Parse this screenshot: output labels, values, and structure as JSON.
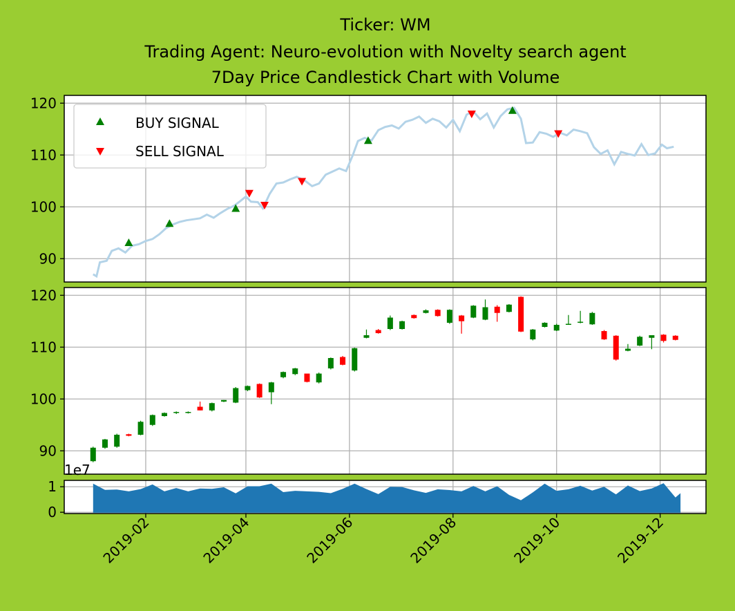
{
  "title": {
    "line1": "Ticker: WM",
    "line2": "Trading Agent: Neuro-evolution with Novelty search agent",
    "line3": "7Day Price Candlestick Chart with Volume"
  },
  "colors": {
    "background": "#9acd32",
    "price_line": "#b3d3e8",
    "buy": "#008000",
    "sell": "#ff0000",
    "candle_up": "#008000",
    "candle_down": "#ff0000",
    "volume": "#1f77b4",
    "grid": "#b0b0b0"
  },
  "chart_data": [
    {
      "type": "line",
      "panel": "price-signals",
      "x_type": "date",
      "y_ticks": [
        90,
        100,
        110,
        120
      ],
      "ylim": [
        85.5,
        121.5
      ],
      "grid": true,
      "legend_position": "upper-left",
      "series": [
        {
          "role": "price",
          "points": [
            [
              "2019-01-01",
              87.0
            ],
            [
              "2019-01-03",
              86.6
            ],
            [
              "2019-01-05",
              89.3
            ],
            [
              "2019-01-09",
              89.6
            ],
            [
              "2019-01-12",
              91.5
            ],
            [
              "2019-01-16",
              92.0
            ],
            [
              "2019-01-20",
              91.2
            ],
            [
              "2019-01-24",
              92.5
            ],
            [
              "2019-01-28",
              92.8
            ],
            [
              "2019-02-01",
              93.4
            ],
            [
              "2019-02-05",
              93.8
            ],
            [
              "2019-02-09",
              94.7
            ],
            [
              "2019-02-13",
              95.9
            ],
            [
              "2019-02-17",
              96.6
            ],
            [
              "2019-02-21",
              97.1
            ],
            [
              "2019-02-25",
              97.4
            ],
            [
              "2019-03-01",
              97.6
            ],
            [
              "2019-03-05",
              97.8
            ],
            [
              "2019-03-09",
              98.5
            ],
            [
              "2019-03-13",
              97.9
            ],
            [
              "2019-03-17",
              98.8
            ],
            [
              "2019-03-21",
              99.6
            ],
            [
              "2019-03-25",
              100.2
            ],
            [
              "2019-03-29",
              101.2
            ],
            [
              "2019-04-01",
              102.0
            ],
            [
              "2019-04-04",
              101.0
            ],
            [
              "2019-04-08",
              100.9
            ],
            [
              "2019-04-11",
              99.7
            ],
            [
              "2019-04-15",
              102.5
            ],
            [
              "2019-04-19",
              104.5
            ],
            [
              "2019-04-23",
              104.7
            ],
            [
              "2019-04-27",
              105.3
            ],
            [
              "2019-05-01",
              105.8
            ],
            [
              "2019-05-06",
              105.0
            ],
            [
              "2019-05-10",
              104.0
            ],
            [
              "2019-05-14",
              104.5
            ],
            [
              "2019-05-18",
              106.2
            ],
            [
              "2019-05-22",
              106.8
            ],
            [
              "2019-05-26",
              107.4
            ],
            [
              "2019-05-30",
              106.9
            ],
            [
              "2019-06-03",
              110.0
            ],
            [
              "2019-06-06",
              112.7
            ],
            [
              "2019-06-10",
              113.3
            ],
            [
              "2019-06-14",
              112.8
            ],
            [
              "2019-06-18",
              114.8
            ],
            [
              "2019-06-22",
              115.4
            ],
            [
              "2019-06-26",
              115.7
            ],
            [
              "2019-06-30",
              115.1
            ],
            [
              "2019-07-04",
              116.4
            ],
            [
              "2019-07-08",
              116.8
            ],
            [
              "2019-07-12",
              117.4
            ],
            [
              "2019-07-16",
              116.2
            ],
            [
              "2019-07-20",
              117.0
            ],
            [
              "2019-07-24",
              116.5
            ],
            [
              "2019-07-28",
              115.3
            ],
            [
              "2019-08-01",
              116.8
            ],
            [
              "2019-08-05",
              114.6
            ],
            [
              "2019-08-09",
              117.8
            ],
            [
              "2019-08-13",
              118.4
            ],
            [
              "2019-08-17",
              116.9
            ],
            [
              "2019-08-21",
              118.0
            ],
            [
              "2019-08-25",
              115.3
            ],
            [
              "2019-08-29",
              117.5
            ],
            [
              "2019-09-02",
              118.8
            ],
            [
              "2019-09-06",
              119.1
            ],
            [
              "2019-09-10",
              117.0
            ],
            [
              "2019-09-13",
              112.3
            ],
            [
              "2019-09-17",
              112.4
            ],
            [
              "2019-09-21",
              114.4
            ],
            [
              "2019-09-25",
              114.1
            ],
            [
              "2019-09-29",
              113.5
            ],
            [
              "2019-10-03",
              114.3
            ],
            [
              "2019-10-07",
              113.8
            ],
            [
              "2019-10-11",
              114.9
            ],
            [
              "2019-10-15",
              114.6
            ],
            [
              "2019-10-19",
              114.2
            ],
            [
              "2019-10-23",
              111.5
            ],
            [
              "2019-10-27",
              110.2
            ],
            [
              "2019-10-31",
              110.9
            ],
            [
              "2019-11-04",
              108.2
            ],
            [
              "2019-11-08",
              110.6
            ],
            [
              "2019-11-12",
              110.2
            ],
            [
              "2019-11-16",
              109.9
            ],
            [
              "2019-11-20",
              112.1
            ],
            [
              "2019-11-24",
              110.0
            ],
            [
              "2019-11-28",
              110.3
            ],
            [
              "2019-12-02",
              112.0
            ],
            [
              "2019-12-05",
              111.3
            ],
            [
              "2019-12-09",
              111.6
            ]
          ]
        },
        {
          "name": "BUY SIGNAL",
          "marker": "triangle-up",
          "points": [
            [
              "2019-01-22",
              93.1
            ],
            [
              "2019-02-15",
              96.8
            ],
            [
              "2019-03-26",
              99.7
            ],
            [
              "2019-06-12",
              112.8
            ],
            [
              "2019-09-05",
              118.6
            ]
          ]
        },
        {
          "name": "SELL SIGNAL",
          "marker": "triangle-down",
          "points": [
            [
              "2019-04-03",
              102.6
            ],
            [
              "2019-04-12",
              100.3
            ],
            [
              "2019-05-04",
              104.9
            ],
            [
              "2019-08-12",
              117.9
            ],
            [
              "2019-10-02",
              114.1
            ]
          ]
        }
      ]
    },
    {
      "type": "candlestick",
      "panel": "candles",
      "period": "7Day",
      "x_type": "date",
      "y_ticks": [
        90,
        100,
        110,
        120
      ],
      "ylim": [
        85.5,
        121.5
      ],
      "grid": true,
      "candles": [
        [
          "2019-01-01",
          88.0,
          90.8,
          87.8,
          90.6
        ],
        [
          "2019-01-08",
          90.6,
          92.3,
          90.4,
          92.2
        ],
        [
          "2019-01-15",
          90.8,
          93.3,
          90.6,
          93.1
        ],
        [
          "2019-01-22",
          93.2,
          93.3,
          92.8,
          92.9
        ],
        [
          "2019-01-29",
          93.1,
          95.8,
          93.0,
          95.6
        ],
        [
          "2019-02-05",
          95.0,
          97.0,
          94.8,
          96.9
        ],
        [
          "2019-02-12",
          96.7,
          97.4,
          96.6,
          97.3
        ],
        [
          "2019-02-19",
          97.3,
          97.6,
          97.1,
          97.5
        ],
        [
          "2019-02-26",
          97.4,
          97.6,
          97.2,
          97.5
        ],
        [
          "2019-03-05",
          98.5,
          99.5,
          97.8,
          97.8
        ],
        [
          "2019-03-12",
          97.8,
          99.3,
          97.6,
          99.2
        ],
        [
          "2019-03-19",
          99.5,
          99.8,
          99.4,
          99.8
        ],
        [
          "2019-03-26",
          99.3,
          102.3,
          99.2,
          102.1
        ],
        [
          "2019-04-02",
          101.7,
          102.6,
          101.5,
          102.5
        ],
        [
          "2019-04-09",
          102.9,
          103.0,
          100.2,
          100.3
        ],
        [
          "2019-04-16",
          101.3,
          103.3,
          99.0,
          103.2
        ],
        [
          "2019-04-23",
          104.2,
          105.3,
          104.0,
          105.2
        ],
        [
          "2019-04-30",
          104.8,
          106.0,
          104.6,
          105.9
        ],
        [
          "2019-05-07",
          104.9,
          104.9,
          103.2,
          103.3
        ],
        [
          "2019-05-14",
          103.2,
          105.1,
          103.0,
          104.9
        ],
        [
          "2019-05-21",
          105.9,
          108.0,
          105.7,
          107.9
        ],
        [
          "2019-05-28",
          108.1,
          108.3,
          106.5,
          106.6
        ],
        [
          "2019-06-04",
          105.5,
          109.9,
          105.3,
          109.8
        ],
        [
          "2019-06-11",
          111.8,
          113.4,
          111.7,
          112.3
        ],
        [
          "2019-06-18",
          113.3,
          113.5,
          112.6,
          112.7
        ],
        [
          "2019-06-25",
          113.5,
          116.1,
          113.3,
          115.7
        ],
        [
          "2019-07-02",
          113.5,
          115.1,
          113.4,
          115.0
        ],
        [
          "2019-07-09",
          116.2,
          116.3,
          115.5,
          115.6
        ],
        [
          "2019-07-16",
          116.6,
          117.3,
          116.5,
          117.1
        ],
        [
          "2019-07-23",
          117.2,
          117.3,
          115.9,
          116.0
        ],
        [
          "2019-07-30",
          114.7,
          117.3,
          114.5,
          117.2
        ],
        [
          "2019-08-06",
          116.1,
          116.2,
          112.6,
          115.0
        ],
        [
          "2019-08-13",
          115.7,
          118.1,
          115.6,
          118.0
        ],
        [
          "2019-08-20",
          115.3,
          119.2,
          115.2,
          117.7
        ],
        [
          "2019-08-27",
          117.8,
          118.1,
          114.9,
          116.6
        ],
        [
          "2019-09-03",
          116.8,
          118.3,
          116.7,
          118.2
        ],
        [
          "2019-09-10",
          119.7,
          119.8,
          112.9,
          113.0
        ],
        [
          "2019-09-17",
          111.5,
          113.5,
          111.3,
          113.4
        ],
        [
          "2019-09-24",
          113.9,
          114.8,
          113.8,
          114.7
        ],
        [
          "2019-10-01",
          113.2,
          114.5,
          113.1,
          114.3
        ],
        [
          "2019-10-08",
          114.4,
          116.2,
          114.3,
          114.5
        ],
        [
          "2019-10-15",
          114.8,
          117.0,
          114.6,
          114.9
        ],
        [
          "2019-10-22",
          114.4,
          116.8,
          114.3,
          116.6
        ],
        [
          "2019-10-29",
          113.1,
          113.3,
          111.4,
          111.5
        ],
        [
          "2019-11-05",
          112.2,
          112.3,
          107.4,
          107.6
        ],
        [
          "2019-11-12",
          109.3,
          110.6,
          109.2,
          109.7
        ],
        [
          "2019-11-19",
          110.3,
          112.2,
          110.2,
          112.0
        ],
        [
          "2019-11-26",
          111.8,
          112.3,
          109.6,
          112.3
        ],
        [
          "2019-12-03",
          112.4,
          112.5,
          110.9,
          111.2
        ],
        [
          "2019-12-10",
          112.2,
          112.3,
          111.3,
          111.4
        ]
      ]
    },
    {
      "type": "area",
      "panel": "volume",
      "x_type": "date",
      "y_ticks": [
        0,
        1
      ],
      "ylim": [
        -0.05,
        1.25
      ],
      "offset_label": "1e7",
      "grid": true,
      "x_ticks": [
        "2019-02",
        "2019-04",
        "2019-06",
        "2019-08",
        "2019-10",
        "2019-12"
      ],
      "points": [
        [
          "2019-01-01",
          1.12
        ],
        [
          "2019-01-08",
          0.88
        ],
        [
          "2019-01-15",
          0.89
        ],
        [
          "2019-01-22",
          0.82
        ],
        [
          "2019-01-29",
          0.91
        ],
        [
          "2019-02-05",
          1.09
        ],
        [
          "2019-02-12",
          0.82
        ],
        [
          "2019-02-19",
          0.95
        ],
        [
          "2019-02-26",
          0.82
        ],
        [
          "2019-03-05",
          0.93
        ],
        [
          "2019-03-12",
          0.92
        ],
        [
          "2019-03-19",
          0.98
        ],
        [
          "2019-03-26",
          0.74
        ],
        [
          "2019-04-02",
          1.02
        ],
        [
          "2019-04-09",
          1.02
        ],
        [
          "2019-04-16",
          1.12
        ],
        [
          "2019-04-23",
          0.79
        ],
        [
          "2019-04-30",
          0.84
        ],
        [
          "2019-05-07",
          0.82
        ],
        [
          "2019-05-14",
          0.8
        ],
        [
          "2019-05-21",
          0.75
        ],
        [
          "2019-05-28",
          0.92
        ],
        [
          "2019-06-04",
          1.12
        ],
        [
          "2019-06-11",
          0.91
        ],
        [
          "2019-06-18",
          0.71
        ],
        [
          "2019-06-25",
          1.0
        ],
        [
          "2019-07-02",
          0.99
        ],
        [
          "2019-07-09",
          0.86
        ],
        [
          "2019-07-16",
          0.76
        ],
        [
          "2019-07-23",
          0.9
        ],
        [
          "2019-07-30",
          0.87
        ],
        [
          "2019-08-06",
          0.82
        ],
        [
          "2019-08-13",
          1.03
        ],
        [
          "2019-08-20",
          0.82
        ],
        [
          "2019-08-27",
          1.02
        ],
        [
          "2019-09-03",
          0.68
        ],
        [
          "2019-09-10",
          0.47
        ],
        [
          "2019-09-17",
          0.78
        ],
        [
          "2019-09-24",
          1.12
        ],
        [
          "2019-10-01",
          0.84
        ],
        [
          "2019-10-08",
          0.9
        ],
        [
          "2019-10-15",
          1.04
        ],
        [
          "2019-10-22",
          0.85
        ],
        [
          "2019-10-29",
          1.0
        ],
        [
          "2019-11-05",
          0.7
        ],
        [
          "2019-11-12",
          1.05
        ],
        [
          "2019-11-19",
          0.83
        ],
        [
          "2019-11-26",
          0.93
        ],
        [
          "2019-12-03",
          1.14
        ],
        [
          "2019-12-10",
          0.58
        ],
        [
          "2019-12-13",
          0.75
        ]
      ]
    }
  ]
}
